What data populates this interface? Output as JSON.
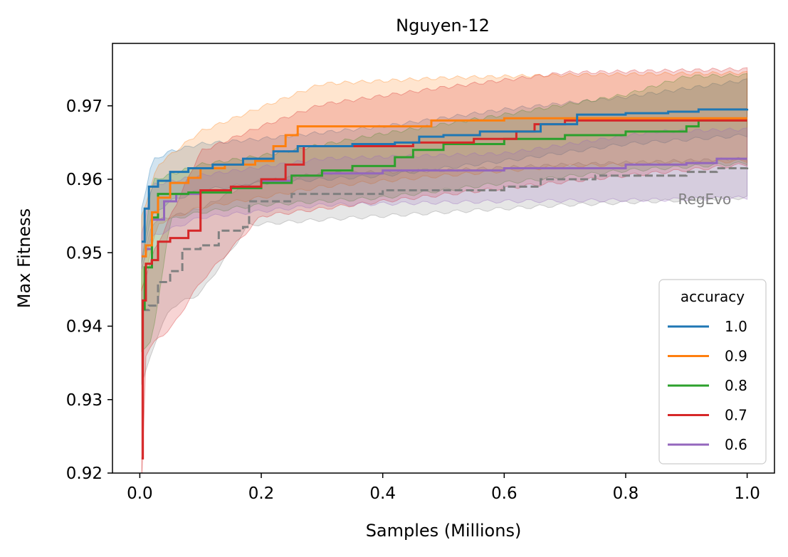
{
  "chart_data": {
    "type": "line",
    "title": "Nguyen-12",
    "xlabel": "Samples (Millions)",
    "ylabel": "Max Fitness",
    "xlim": [
      -0.045,
      1.045
    ],
    "ylim": [
      0.92,
      0.9785
    ],
    "x_ticks": [
      0.0,
      0.2,
      0.4,
      0.6,
      0.8,
      1.0
    ],
    "x_tick_labels": [
      "0.0",
      "0.2",
      "0.4",
      "0.6",
      "0.8",
      "1.0"
    ],
    "y_ticks": [
      0.92,
      0.93,
      0.94,
      0.95,
      0.96,
      0.97
    ],
    "y_tick_labels": [
      "0.92",
      "0.93",
      "0.94",
      "0.95",
      "0.96",
      "0.97"
    ],
    "grid": false,
    "legend": {
      "title": "accuracy",
      "position": "lower-right"
    },
    "annotations": [
      {
        "text": "RegEvo",
        "x": 0.93,
        "y": 0.9573,
        "color": "#808080"
      }
    ],
    "series": [
      {
        "name": "1.0",
        "color": "#1f77b4",
        "style": "step",
        "points": [
          [
            0.003,
            0.9515
          ],
          [
            0.008,
            0.956
          ],
          [
            0.015,
            0.959
          ],
          [
            0.03,
            0.9598
          ],
          [
            0.05,
            0.961
          ],
          [
            0.08,
            0.9615
          ],
          [
            0.12,
            0.962
          ],
          [
            0.17,
            0.9628
          ],
          [
            0.22,
            0.9638
          ],
          [
            0.26,
            0.9645
          ],
          [
            0.35,
            0.9648
          ],
          [
            0.42,
            0.965
          ],
          [
            0.46,
            0.9658
          ],
          [
            0.5,
            0.966
          ],
          [
            0.56,
            0.9665
          ],
          [
            0.66,
            0.9675
          ],
          [
            0.72,
            0.9688
          ],
          [
            0.8,
            0.969
          ],
          [
            0.87,
            0.9692
          ],
          [
            0.92,
            0.9695
          ],
          [
            1.0,
            0.9696
          ]
        ],
        "band_upper": [
          [
            0.003,
            0.956
          ],
          [
            0.02,
            0.9625
          ],
          [
            0.05,
            0.9638
          ],
          [
            0.1,
            0.9648
          ],
          [
            0.2,
            0.9655
          ],
          [
            0.4,
            0.9672
          ],
          [
            0.6,
            0.9695
          ],
          [
            0.8,
            0.9712
          ],
          [
            1.0,
            0.9735
          ]
        ],
        "band_lower": [
          [
            0.003,
            0.9488
          ],
          [
            0.02,
            0.9552
          ],
          [
            0.05,
            0.957
          ],
          [
            0.1,
            0.9585
          ],
          [
            0.2,
            0.9595
          ],
          [
            0.4,
            0.9605
          ],
          [
            0.6,
            0.9625
          ],
          [
            0.8,
            0.9648
          ],
          [
            1.0,
            0.966
          ]
        ]
      },
      {
        "name": "0.9",
        "color": "#ff7f0e",
        "style": "step",
        "points": [
          [
            0.003,
            0.9495
          ],
          [
            0.01,
            0.951
          ],
          [
            0.02,
            0.9555
          ],
          [
            0.03,
            0.9575
          ],
          [
            0.05,
            0.9595
          ],
          [
            0.08,
            0.9602
          ],
          [
            0.1,
            0.9615
          ],
          [
            0.14,
            0.962
          ],
          [
            0.19,
            0.9625
          ],
          [
            0.22,
            0.9645
          ],
          [
            0.24,
            0.966
          ],
          [
            0.26,
            0.9672
          ],
          [
            0.3,
            0.9672
          ],
          [
            0.48,
            0.968
          ],
          [
            0.6,
            0.9683
          ],
          [
            0.8,
            0.9683
          ],
          [
            1.0,
            0.9683
          ]
        ],
        "band_upper": [
          [
            0.003,
            0.955
          ],
          [
            0.03,
            0.962
          ],
          [
            0.1,
            0.9665
          ],
          [
            0.2,
            0.9698
          ],
          [
            0.3,
            0.973
          ],
          [
            0.5,
            0.9738
          ],
          [
            0.7,
            0.9742
          ],
          [
            1.0,
            0.9745
          ]
        ],
        "band_lower": [
          [
            0.003,
            0.945
          ],
          [
            0.03,
            0.954
          ],
          [
            0.1,
            0.9562
          ],
          [
            0.2,
            0.9575
          ],
          [
            0.3,
            0.959
          ],
          [
            0.5,
            0.9605
          ],
          [
            0.7,
            0.9618
          ],
          [
            1.0,
            0.9625
          ]
        ]
      },
      {
        "name": "0.8",
        "color": "#2ca02c",
        "style": "step",
        "points": [
          [
            0.003,
            0.9423
          ],
          [
            0.008,
            0.948
          ],
          [
            0.02,
            0.9548
          ],
          [
            0.03,
            0.958
          ],
          [
            0.08,
            0.9582
          ],
          [
            0.15,
            0.9588
          ],
          [
            0.2,
            0.9595
          ],
          [
            0.25,
            0.9605
          ],
          [
            0.3,
            0.9612
          ],
          [
            0.35,
            0.9618
          ],
          [
            0.42,
            0.963
          ],
          [
            0.45,
            0.964
          ],
          [
            0.5,
            0.9648
          ],
          [
            0.6,
            0.9655
          ],
          [
            0.7,
            0.966
          ],
          [
            0.8,
            0.9665
          ],
          [
            0.9,
            0.9672
          ],
          [
            0.92,
            0.968
          ],
          [
            1.0,
            0.968
          ]
        ],
        "band_upper": [
          [
            0.003,
            0.9485
          ],
          [
            0.02,
            0.9598
          ],
          [
            0.1,
            0.962
          ],
          [
            0.2,
            0.9632
          ],
          [
            0.4,
            0.9662
          ],
          [
            0.6,
            0.9688
          ],
          [
            0.8,
            0.9715
          ],
          [
            0.9,
            0.974
          ],
          [
            1.0,
            0.9742
          ]
        ],
        "band_lower": [
          [
            0.003,
            0.9368
          ],
          [
            0.02,
            0.9378
          ],
          [
            0.05,
            0.9545
          ],
          [
            0.1,
            0.9555
          ],
          [
            0.2,
            0.9565
          ],
          [
            0.4,
            0.9575
          ],
          [
            0.6,
            0.9595
          ],
          [
            0.8,
            0.9612
          ],
          [
            1.0,
            0.9622
          ]
        ]
      },
      {
        "name": "0.7",
        "color": "#d62728",
        "style": "step",
        "points": [
          [
            0.003,
            0.922
          ],
          [
            0.005,
            0.9435
          ],
          [
            0.01,
            0.9485
          ],
          [
            0.02,
            0.949
          ],
          [
            0.03,
            0.9515
          ],
          [
            0.05,
            0.952
          ],
          [
            0.08,
            0.953
          ],
          [
            0.1,
            0.9585
          ],
          [
            0.15,
            0.959
          ],
          [
            0.2,
            0.96
          ],
          [
            0.24,
            0.962
          ],
          [
            0.27,
            0.9645
          ],
          [
            0.35,
            0.9645
          ],
          [
            0.45,
            0.965
          ],
          [
            0.55,
            0.9655
          ],
          [
            0.62,
            0.9665
          ],
          [
            0.65,
            0.9675
          ],
          [
            0.7,
            0.968
          ],
          [
            1.0,
            0.968
          ]
        ],
        "band_upper": [
          [
            0.003,
            0.945
          ],
          [
            0.02,
            0.9495
          ],
          [
            0.1,
            0.9638
          ],
          [
            0.2,
            0.9672
          ],
          [
            0.3,
            0.9702
          ],
          [
            0.5,
            0.9725
          ],
          [
            0.7,
            0.9745
          ],
          [
            1.0,
            0.975
          ]
        ],
        "band_lower": [
          [
            0.003,
            0.918
          ],
          [
            0.01,
            0.936
          ],
          [
            0.03,
            0.9385
          ],
          [
            0.05,
            0.9395
          ],
          [
            0.1,
            0.946
          ],
          [
            0.2,
            0.955
          ],
          [
            0.4,
            0.957
          ],
          [
            0.6,
            0.9588
          ],
          [
            0.8,
            0.9605
          ],
          [
            1.0,
            0.962
          ]
        ]
      },
      {
        "name": "0.6",
        "color": "#9467bd",
        "style": "step",
        "points": [
          [
            0.003,
            0.9495
          ],
          [
            0.01,
            0.9505
          ],
          [
            0.02,
            0.9545
          ],
          [
            0.04,
            0.957
          ],
          [
            0.06,
            0.958
          ],
          [
            0.1,
            0.9585
          ],
          [
            0.15,
            0.9588
          ],
          [
            0.2,
            0.9598
          ],
          [
            0.25,
            0.9605
          ],
          [
            0.3,
            0.9608
          ],
          [
            0.4,
            0.9612
          ],
          [
            0.6,
            0.9615
          ],
          [
            0.8,
            0.962
          ],
          [
            0.9,
            0.9622
          ],
          [
            0.95,
            0.9628
          ],
          [
            1.0,
            0.9628
          ]
        ],
        "band_upper": [
          [
            0.003,
            0.9525
          ],
          [
            0.02,
            0.9592
          ],
          [
            0.1,
            0.9605
          ],
          [
            0.3,
            0.9628
          ],
          [
            0.6,
            0.9635
          ],
          [
            0.85,
            0.9665
          ],
          [
            1.0,
            0.9668
          ]
        ],
        "band_lower": [
          [
            0.003,
            0.948
          ],
          [
            0.02,
            0.9522
          ],
          [
            0.1,
            0.9548
          ],
          [
            0.3,
            0.9565
          ],
          [
            0.6,
            0.957
          ],
          [
            0.85,
            0.9572
          ],
          [
            1.0,
            0.9575
          ]
        ]
      },
      {
        "name": "RegEvo",
        "color": "#808080",
        "style": "dashed-step",
        "points": [
          [
            0.003,
            0.9422
          ],
          [
            0.015,
            0.9428
          ],
          [
            0.03,
            0.946
          ],
          [
            0.05,
            0.9475
          ],
          [
            0.07,
            0.9505
          ],
          [
            0.1,
            0.951
          ],
          [
            0.13,
            0.953
          ],
          [
            0.17,
            0.9535
          ],
          [
            0.18,
            0.957
          ],
          [
            0.25,
            0.958
          ],
          [
            0.4,
            0.9585
          ],
          [
            0.6,
            0.959
          ],
          [
            0.66,
            0.96
          ],
          [
            0.75,
            0.9605
          ],
          [
            0.9,
            0.961
          ],
          [
            0.95,
            0.9615
          ],
          [
            1.0,
            0.962
          ]
        ],
        "band_upper": [
          [
            0.003,
            0.9475
          ],
          [
            0.02,
            0.9542
          ],
          [
            0.1,
            0.956
          ],
          [
            0.18,
            0.9595
          ],
          [
            0.3,
            0.9608
          ],
          [
            0.5,
            0.9612
          ],
          [
            0.7,
            0.962
          ],
          [
            1.0,
            0.9628
          ]
        ],
        "band_lower": [
          [
            0.003,
            0.9318
          ],
          [
            0.02,
            0.9368
          ],
          [
            0.05,
            0.9425
          ],
          [
            0.1,
            0.9445
          ],
          [
            0.18,
            0.9538
          ],
          [
            0.3,
            0.9545
          ],
          [
            0.5,
            0.9555
          ],
          [
            0.7,
            0.9565
          ],
          [
            1.0,
            0.9575
          ]
        ]
      }
    ]
  }
}
